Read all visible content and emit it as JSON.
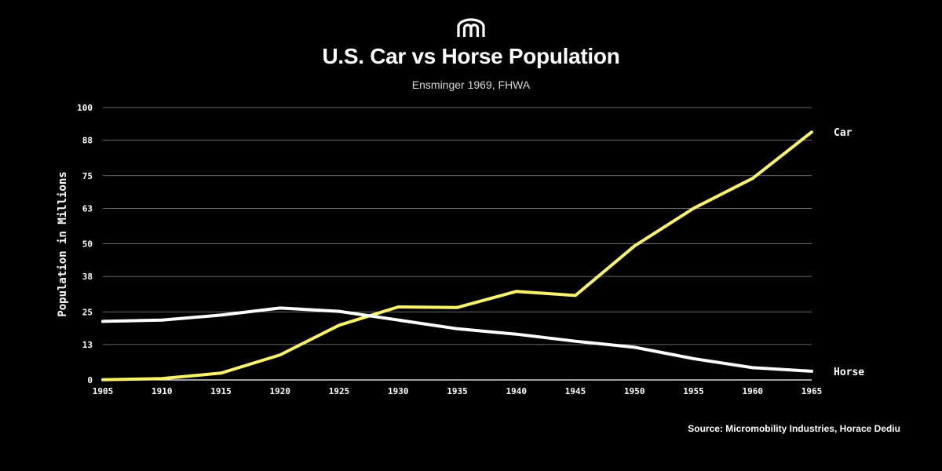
{
  "header": {
    "logo_icon": "arches-logo-icon",
    "title": "U.S. Car vs Horse Population",
    "subtitle": "Ensminger 1969, FHWA"
  },
  "footer": {
    "source": "Source: Micromobility Industries, Horace Dediu"
  },
  "colors": {
    "background": "#000000",
    "car": "#f8f36b",
    "horse": "#ffffff",
    "grid": "#8a8a8a"
  },
  "chart_data": {
    "type": "line",
    "title": "U.S. Car vs Horse Population",
    "subtitle": "Ensminger 1969, FHWA",
    "xlabel": "",
    "ylabel": "Population in Millions",
    "x": [
      1905,
      1910,
      1915,
      1920,
      1925,
      1930,
      1935,
      1940,
      1945,
      1950,
      1955,
      1960,
      1965
    ],
    "ylim": [
      0,
      100
    ],
    "yticks": [
      0,
      13,
      25,
      38,
      50,
      63,
      75,
      88,
      100
    ],
    "grid": true,
    "series": [
      {
        "name": "Car",
        "color": "#f8f36b",
        "values": [
          0.1,
          0.5,
          2.5,
          9.2,
          20.1,
          26.8,
          26.6,
          32.5,
          31.0,
          49.2,
          63.0,
          74.0,
          91.0
        ]
      },
      {
        "name": "Horse",
        "color": "#ffffff",
        "values": [
          21.5,
          22.0,
          23.8,
          26.4,
          25.2,
          22.0,
          18.8,
          16.8,
          14.2,
          12.0,
          7.8,
          4.5,
          3.2
        ]
      }
    ]
  }
}
